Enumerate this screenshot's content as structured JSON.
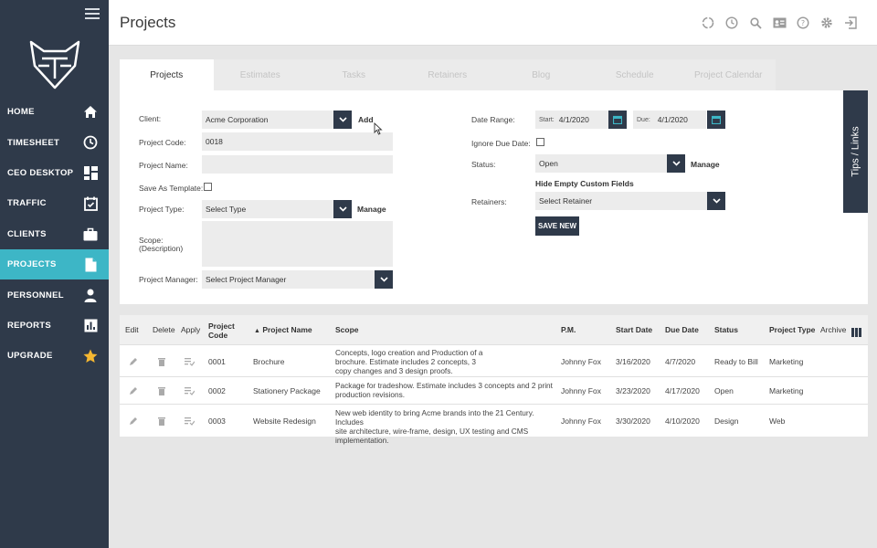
{
  "header": {
    "title": "Projects"
  },
  "sidebar": {
    "items": [
      {
        "label": "HOME",
        "icon": "home-icon"
      },
      {
        "label": "TIMESHEET",
        "icon": "clock-icon"
      },
      {
        "label": "CEO DESKTOP",
        "icon": "dashboard-icon"
      },
      {
        "label": "TRAFFIC",
        "icon": "calendar-check-icon"
      },
      {
        "label": "CLIENTS",
        "icon": "briefcase-icon"
      },
      {
        "label": "PROJECTS",
        "icon": "document-icon"
      },
      {
        "label": "PERSONNEL",
        "icon": "person-icon"
      },
      {
        "label": "REPORTS",
        "icon": "bar-chart-icon"
      },
      {
        "label": "UPGRADE",
        "icon": "star-icon"
      }
    ],
    "active": "PROJECTS"
  },
  "tabs": [
    "Projects",
    "Estimates",
    "Tasks",
    "Retainers",
    "Blog",
    "Schedule",
    "Project Calendar"
  ],
  "form": {
    "client_label": "Client:",
    "client_value": "Acme Corporation",
    "client_add": "Add",
    "project_code_label": "Project Code:",
    "project_code_value": "0018",
    "project_name_label": "Project Name:",
    "project_name_value": "",
    "save_template_label": "Save As Template:",
    "project_type_label": "Project Type:",
    "project_type_value": "Select Type",
    "project_type_manage": "Manage",
    "scope_label_1": "Scope:",
    "scope_label_2": "(Description)",
    "scope_value": "",
    "pm_label": "Project Manager:",
    "pm_value": "Select Project Manager",
    "date_range_label": "Date Range:",
    "start_label": "Start:",
    "start_value": "4/1/2020",
    "due_label": "Due:",
    "due_value": "4/1/2020",
    "ignore_due_label": "Ignore Due Date:",
    "status_label": "Status:",
    "status_value": "Open",
    "status_manage": "Manage",
    "hide_empty": "Hide Empty Custom Fields",
    "retainers_label": "Retainers:",
    "retainers_value": "Select Retainer",
    "save_new": "SAVE NEW"
  },
  "tips_label": "Tips / Links",
  "table": {
    "headers": {
      "edit": "Edit",
      "delete": "Delete",
      "apply": "Apply",
      "code_1": "Project",
      "code_2": "Code",
      "name": "Project Name",
      "scope": "Scope",
      "pm": "P.M.",
      "start": "Start Date",
      "due": "Due Date",
      "status": "Status",
      "type": "Project Type",
      "archive": "Archive"
    },
    "rows": [
      {
        "code": "0001",
        "name": "Brochure",
        "scope_lines": [
          "Concepts, logo creation and Production of a",
          "brochure. Estimate includes 2 concepts, 3",
          "copy changes and 3 design proofs."
        ],
        "pm": "Johnny Fox",
        "start": "3/16/2020",
        "due": "4/7/2020",
        "status": "Ready to Bill",
        "type": "Marketing"
      },
      {
        "code": "0002",
        "name": "Stationery Package",
        "scope_lines": [
          "Package for tradeshow. Estimate includes 3 concepts and 2 print",
          "production revisions."
        ],
        "pm": "Johnny Fox",
        "start": "3/23/2020",
        "due": "4/17/2020",
        "status": "Open",
        "type": "Marketing"
      },
      {
        "code": "0003",
        "name": "Website Redesign",
        "scope_lines": [
          "New web identity to bring Acme brands into the 21 Century. Includes",
          "site architecture, wire-frame, design, UX testing and CMS",
          "implementation."
        ],
        "pm": "Johnny Fox",
        "start": "3/30/2020",
        "due": "4/10/2020",
        "status": "Design",
        "type": "Web"
      }
    ]
  },
  "colors": {
    "sidebar": "#2f3a4a",
    "accent": "#3db6c6",
    "star": "#f5b731"
  }
}
